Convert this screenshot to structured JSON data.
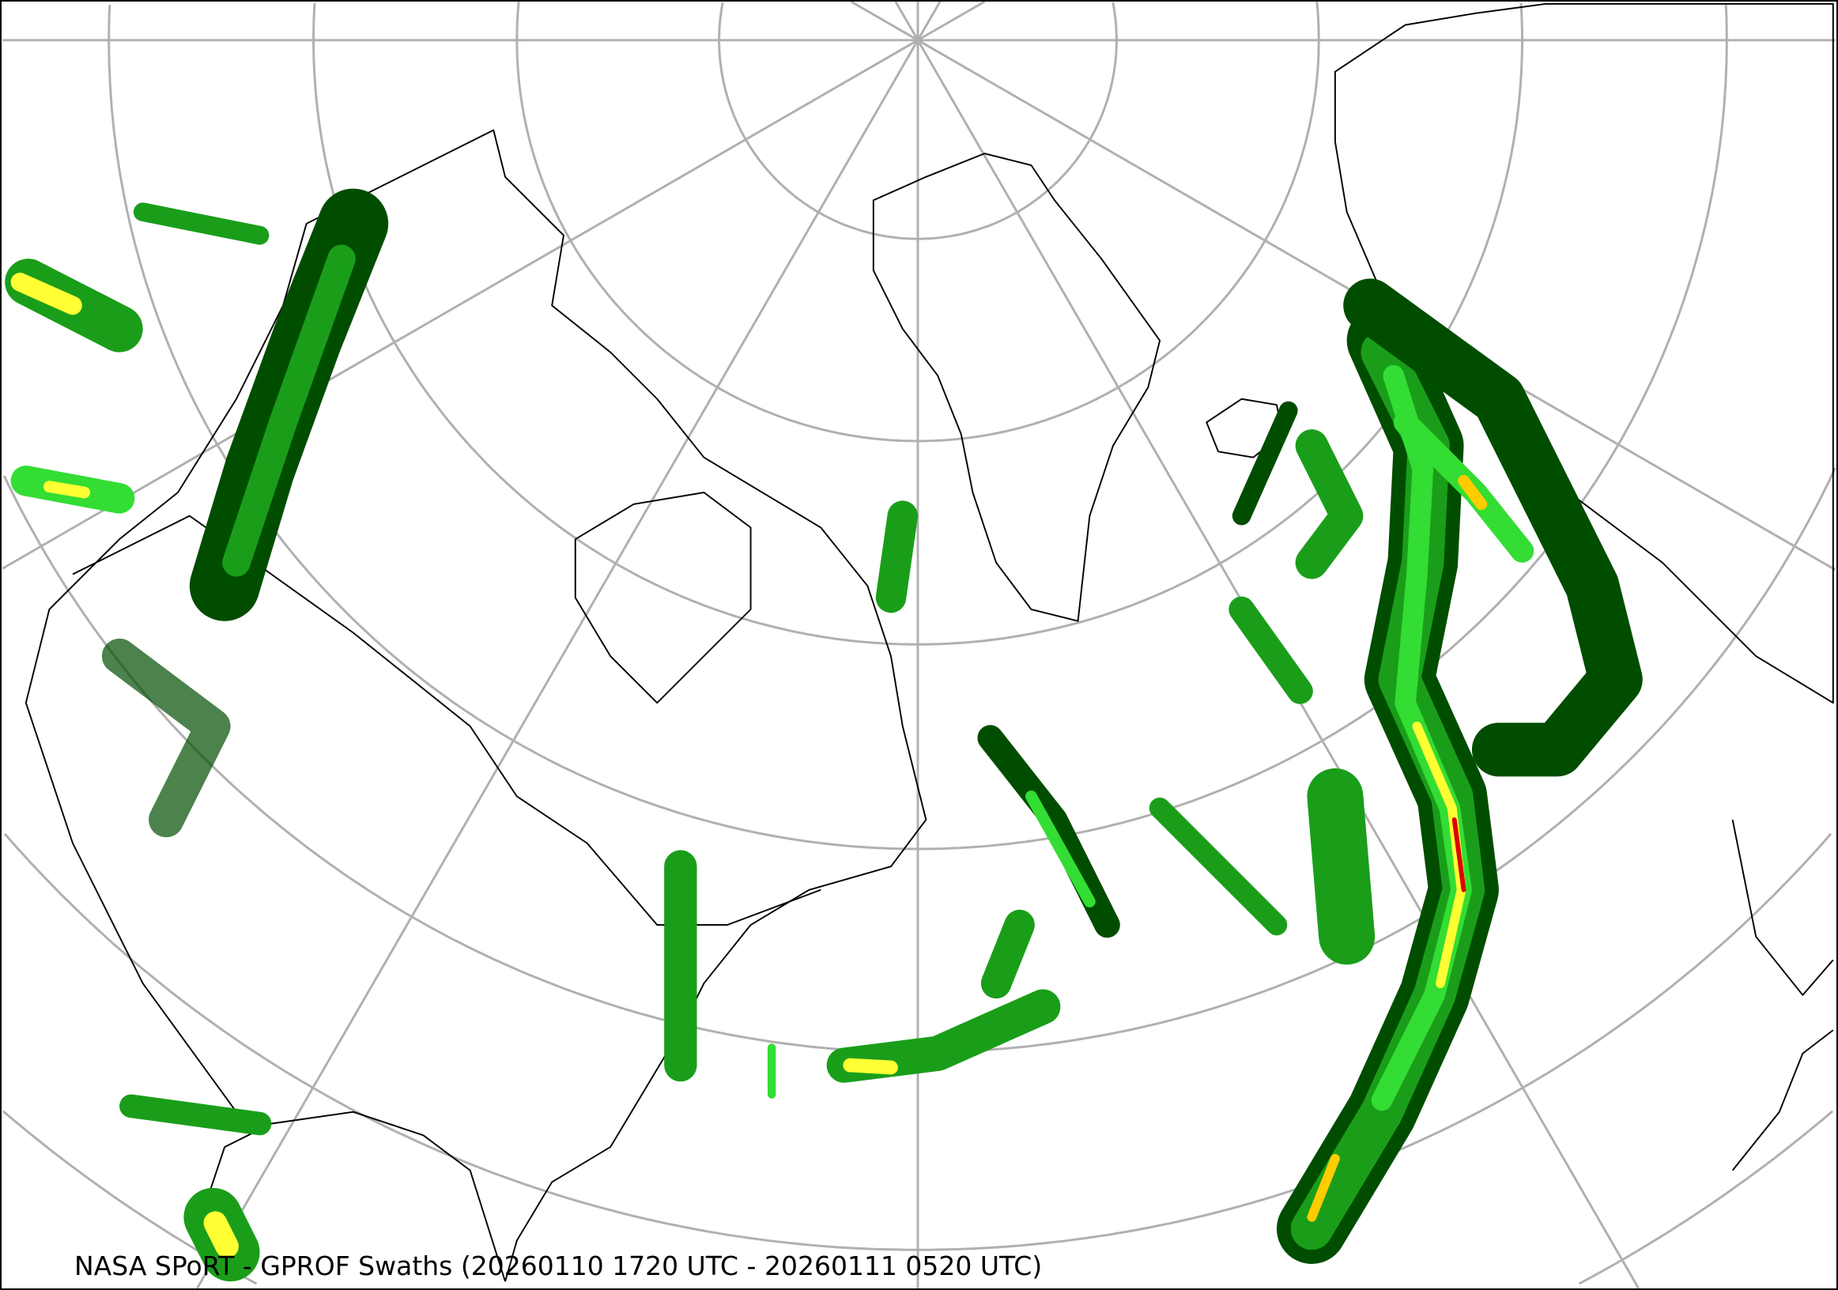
{
  "caption": "NASA SPoRT - GPROF Swaths (20260110 1720 UTC - 20260111 0520 UTC)",
  "map": {
    "projection": "polar stereographic (north)",
    "graticule": true,
    "colors": {
      "light_precip": "#004d00",
      "moderate_precip": "#1a9e1a",
      "bright_precip": "#33dd33",
      "heavy_precip": "#ffff33",
      "very_heavy_precip": "#ff9933",
      "extreme_precip": "#dd0000",
      "graticule": "#b0b0b0",
      "borders": "#000000"
    }
  }
}
